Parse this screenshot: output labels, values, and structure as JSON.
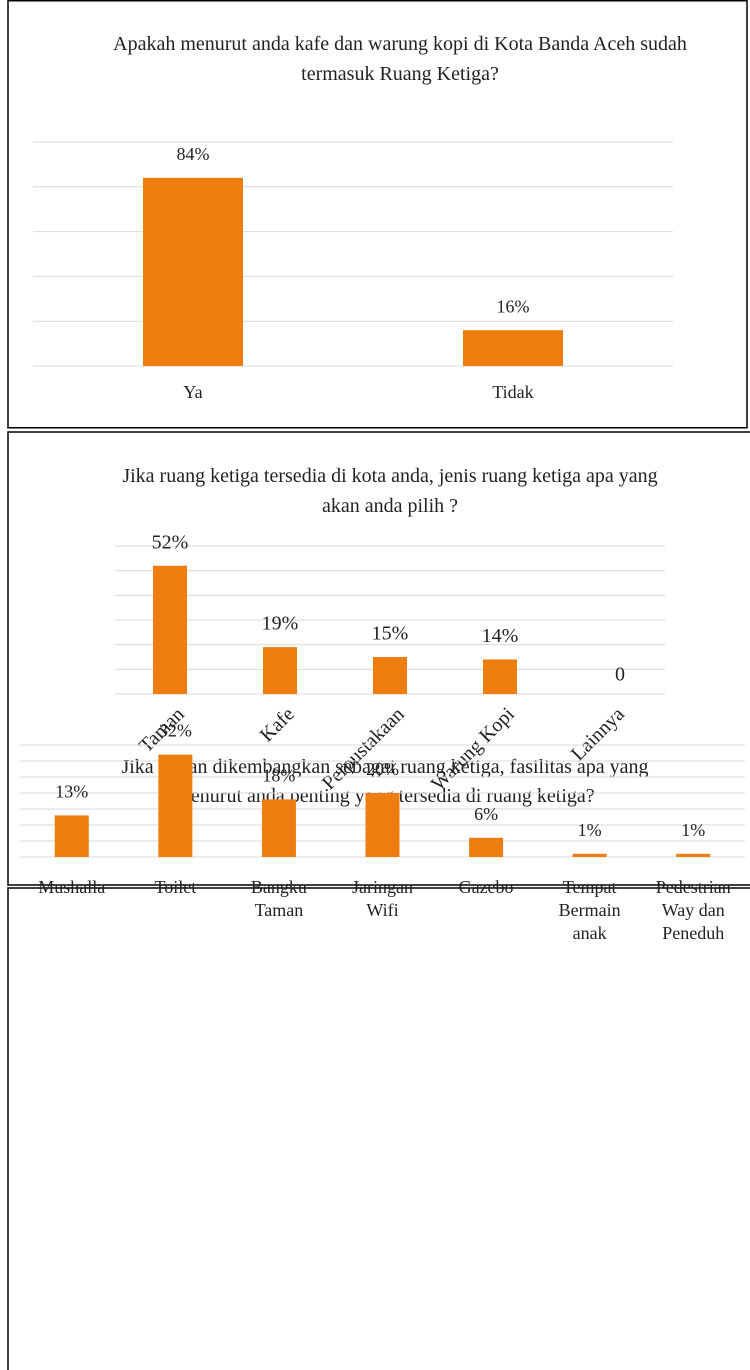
{
  "chart_data": [
    {
      "type": "bar",
      "title": "Apakah menurut anda kafe dan warung kopi di Kota Banda Aceh sudah termasuk Ruang Ketiga?",
      "categories": [
        "Ya",
        "Tidak"
      ],
      "values": [
        84,
        16
      ],
      "value_labels": [
        "84%",
        "16%"
      ],
      "color": "#ed7d0e",
      "ylim": [
        0,
        100
      ],
      "yticks": [
        0,
        20,
        40,
        60,
        80,
        100
      ],
      "grid": true
    },
    {
      "type": "bar",
      "title": "Jika ruang ketiga tersedia di kota anda, jenis ruang ketiga apa yang akan anda pilih ?",
      "categories": [
        "Taman",
        "Kafe",
        "Perpustakaan",
        "Warung Kopi",
        "Lainnya"
      ],
      "values": [
        52,
        19,
        15,
        14,
        0
      ],
      "value_labels": [
        "52%",
        "19%",
        "15%",
        "14%",
        "0"
      ],
      "color": "#ed7d0e",
      "ylim": [
        0,
        60
      ],
      "yticks": [
        0,
        10,
        20,
        30,
        40,
        50,
        60
      ],
      "grid": true
    },
    {
      "type": "bar",
      "title": "Jika taman dikembangkan sebagai ruang ketiga, fasilitas apa yang menurut anda penting yang tersedia di ruang ketiga?",
      "categories": [
        "Mushalla",
        "Toilet",
        "Bangku Taman",
        "Jaringan Wifi",
        "Gazebo",
        "Tempat Bermain anak",
        "Pedestrian Way dan Peneduh"
      ],
      "values": [
        13,
        32,
        18,
        20,
        6,
        1,
        1
      ],
      "value_labels": [
        "13%",
        "32%",
        "18%",
        "20%",
        "6%",
        "1%",
        "1%"
      ],
      "color": "#ed7d0e",
      "ylim": [
        0,
        35
      ],
      "yticks": [
        0,
        5,
        10,
        15,
        20,
        25,
        30,
        35
      ],
      "grid": true
    }
  ]
}
